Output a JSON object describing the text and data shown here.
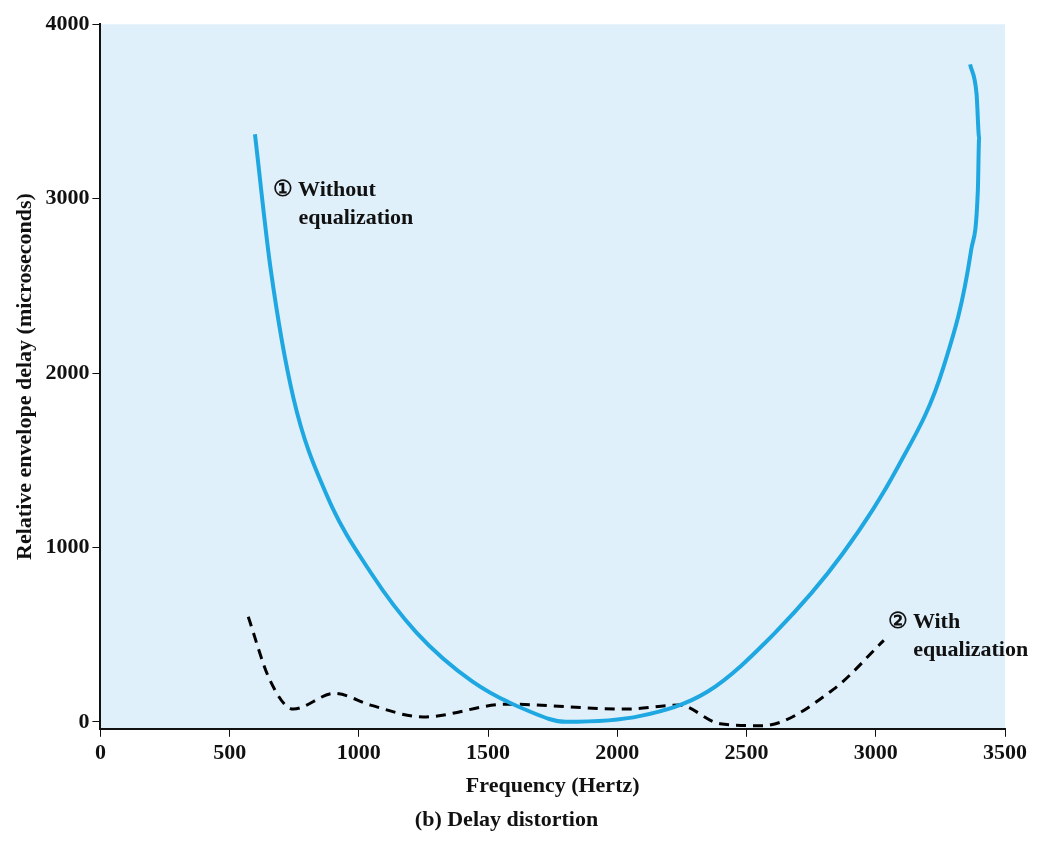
{
  "chart_data": {
    "type": "line",
    "title": "(b) Delay distortion",
    "xlabel": "Frequency (Hertz)",
    "ylabel": "Relative envelope delay (microseconds)",
    "xlim": [
      0,
      3500
    ],
    "xticks": [
      0,
      500,
      1000,
      1500,
      2000,
      2500,
      3000,
      3500
    ],
    "ylim": [
      -40,
      4000
    ],
    "yticks": [
      0,
      1000,
      2000,
      3000,
      4000
    ],
    "series": [
      {
        "name": "① Without equalization",
        "color": "#1ea7e1",
        "line_style": "solid",
        "x": [
          598,
          659,
          746,
          876,
          1049,
          1223,
          1440,
          1657,
          1800,
          2090,
          2350,
          2611,
          2871,
          3088,
          3261,
          3369,
          3395,
          3400,
          3390,
          3365
        ],
        "values": [
          3369,
          2593,
          1862,
          1299,
          849,
          512,
          231,
          62,
          0,
          34,
          174,
          512,
          962,
          1468,
          2030,
          2705,
          3050,
          3350,
          3600,
          3770
        ]
      },
      {
        "name": "② With equalization",
        "color": "#000000",
        "line_style": "dashed",
        "x": [
          572,
          655,
          746,
          906,
          1045,
          1249,
          1574,
          2029,
          2238,
          2398,
          2559,
          2836,
          3031
        ],
        "values": [
          602,
          242,
          73,
          163,
          96,
          28,
          101,
          73,
          96,
          -11,
          -22,
          186,
          467
        ]
      }
    ]
  }
}
